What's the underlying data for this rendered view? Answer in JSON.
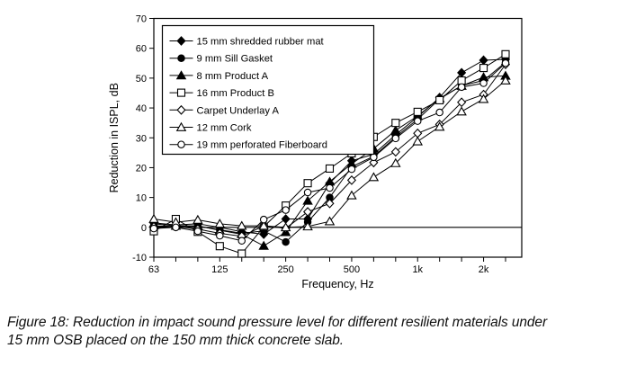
{
  "figure": {
    "caption_line1": "Figure 18: Reduction in impact sound pressure level for different resilient materials under",
    "caption_line2": "15 mm OSB placed on the 150 mm thick concrete slab."
  },
  "chart_data": {
    "type": "line",
    "title": "",
    "xlabel": "Frequency, Hz",
    "ylabel": "Reduction in ISPL, dB",
    "x_scale": "log-third-octave-bands",
    "bands_hz": [
      63,
      80,
      100,
      125,
      160,
      200,
      250,
      315,
      400,
      500,
      630,
      800,
      1000,
      1250,
      1600,
      2000,
      2500
    ],
    "x_tick_labels": [
      {
        "label": "63",
        "band_index": 0
      },
      {
        "label": "125",
        "band_index": 3
      },
      {
        "label": "250",
        "band_index": 6
      },
      {
        "label": "500",
        "band_index": 9
      },
      {
        "label": "1k",
        "band_index": 12
      },
      {
        "label": "2k",
        "band_index": 15
      }
    ],
    "ylim": [
      -10,
      70
    ],
    "y_ticks": [
      -10,
      0,
      10,
      20,
      30,
      40,
      50,
      60,
      70
    ],
    "zero_line": true,
    "grid": false,
    "legend_position": "top-left-inside",
    "line_color": "#000000",
    "background_color": "#ffffff",
    "series": [
      {
        "name": "15 mm shredded rubber mat",
        "marker": "diamond",
        "fill": "filled",
        "values": [
          1.5,
          0.8,
          1.2,
          0.0,
          -1.5,
          -2.3,
          2.8,
          2.8,
          14.8,
          22.3,
          24.5,
          31.0,
          37.0,
          43.5,
          51.8,
          56.0,
          56.3
        ]
      },
      {
        "name": "9 mm Sill Gasket",
        "marker": "circle",
        "fill": "filled",
        "values": [
          0.5,
          0.3,
          0.4,
          -0.8,
          -2.0,
          -1.2,
          -4.9,
          1.8,
          10.0,
          20.3,
          23.8,
          30.3,
          36.2,
          43.0,
          47.5,
          49.2,
          55.3
        ]
      },
      {
        "name": "8 mm Product A",
        "marker": "triangle",
        "fill": "filled",
        "values": [
          1.2,
          0.5,
          0.5,
          -1.0,
          -2.3,
          -6.2,
          -1.6,
          8.9,
          15.3,
          21.3,
          26.4,
          32.5,
          37.3,
          43.2,
          47.4,
          50.3,
          50.8
        ]
      },
      {
        "name": "16 mm Product B",
        "marker": "square",
        "fill": "open",
        "values": [
          -1.3,
          2.8,
          -1.5,
          -6.3,
          -8.8,
          0.2,
          7.3,
          14.8,
          19.7,
          24.8,
          30.3,
          35.0,
          38.7,
          42.6,
          49.2,
          53.4,
          58.0
        ]
      },
      {
        "name": "Carpet Underlay A",
        "marker": "diamond",
        "fill": "open",
        "values": [
          0.2,
          0.3,
          -0.6,
          -2.0,
          -3.0,
          0.5,
          -0.3,
          5.2,
          8.0,
          15.8,
          21.7,
          25.3,
          31.5,
          34.5,
          41.9,
          44.5,
          54.6
        ]
      },
      {
        "name": "12 mm Cork",
        "marker": "triangle",
        "fill": "open",
        "values": [
          2.8,
          1.7,
          2.5,
          1.2,
          0.5,
          0.5,
          0.0,
          0.3,
          2.0,
          10.7,
          16.8,
          21.5,
          28.8,
          33.7,
          38.8,
          43.0,
          49.2
        ]
      },
      {
        "name": "19 mm perforated Fiberboard",
        "marker": "circle",
        "fill": "open",
        "values": [
          -0.4,
          0.0,
          -1.3,
          -2.8,
          -4.5,
          2.6,
          5.8,
          11.7,
          13.2,
          19.5,
          23.5,
          29.8,
          35.6,
          38.5,
          47.0,
          48.3,
          55.0
        ]
      }
    ]
  }
}
